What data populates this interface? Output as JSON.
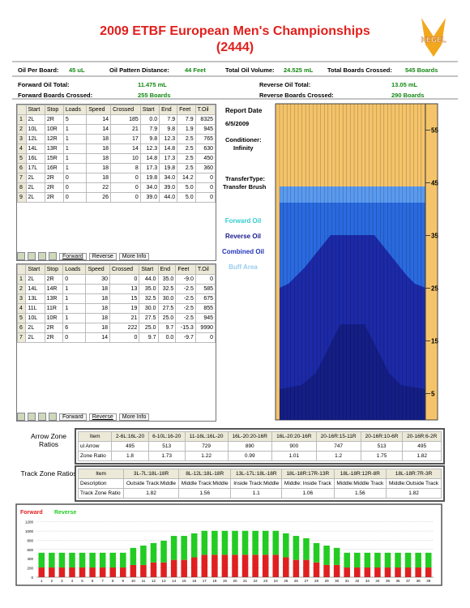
{
  "header": {
    "title": "2009 ETBF European Men's Championships",
    "subtitle": "(2444)",
    "logo": "KEGEL"
  },
  "summary": [
    [
      {
        "label": "Oil Per Board:",
        "value": "45 uL"
      },
      {
        "label": "Oil Pattern Distance:",
        "value": "44 Feet"
      },
      {
        "label": "Total Oil Volume:",
        "value": "24.525 mL"
      },
      {
        "label": "Total Boards Crossed:",
        "value": "545 Boards"
      }
    ],
    [
      {
        "label": "Forward Oil Total:",
        "value": "11.475 mL"
      },
      {
        "label": "Reverse Oil Total:",
        "value": "13.05 mL"
      }
    ],
    [
      {
        "label": "Forward Boards Crossed:",
        "value": "255 Boards"
      },
      {
        "label": "Reverse Boards Crossed:",
        "value": "290 Boards"
      }
    ]
  ],
  "forward_table": {
    "columns": [
      "Start",
      "Stop",
      "Loads",
      "Speed",
      "Crossed",
      "Start",
      "End",
      "Feet",
      "T.Oil"
    ],
    "rows": [
      [
        "1",
        "2L",
        "2R",
        "5",
        "14",
        "185",
        "0.0",
        "7.9",
        "7.9",
        "8325"
      ],
      [
        "2",
        "10L",
        "10R",
        "1",
        "14",
        "21",
        "7.9",
        "9.8",
        "1.9",
        "945"
      ],
      [
        "3",
        "12L",
        "12R",
        "1",
        "18",
        "17",
        "9.8",
        "12.3",
        "2.5",
        "765"
      ],
      [
        "4",
        "14L",
        "13R",
        "1",
        "18",
        "14",
        "12.3",
        "14.8",
        "2.5",
        "630"
      ],
      [
        "5",
        "16L",
        "15R",
        "1",
        "18",
        "10",
        "14.8",
        "17.3",
        "2.5",
        "450"
      ],
      [
        "6",
        "17L",
        "16R",
        "1",
        "18",
        "8",
        "17.3",
        "19.8",
        "2.5",
        "360"
      ],
      [
        "7",
        "2L",
        "2R",
        "0",
        "18",
        "0",
        "19.8",
        "34.0",
        "14.2",
        "0"
      ],
      [
        "8",
        "2L",
        "2R",
        "0",
        "22",
        "0",
        "34.0",
        "39.0",
        "5.0",
        "0"
      ],
      [
        "9",
        "2L",
        "2R",
        "0",
        "26",
        "0",
        "39.0",
        "44.0",
        "5.0",
        "0"
      ]
    ],
    "tabs": [
      "Forward",
      "Reverse",
      "More Info"
    ]
  },
  "reverse_table": {
    "columns": [
      "Start",
      "Stop",
      "Loads",
      "Speed",
      "Crossed",
      "Start",
      "End",
      "Feet",
      "T.Oil"
    ],
    "rows": [
      [
        "1",
        "2L",
        "2R",
        "0",
        "30",
        "0",
        "44.0",
        "35.0",
        "-9.0",
        "0"
      ],
      [
        "2",
        "14L",
        "14R",
        "1",
        "18",
        "13",
        "35.0",
        "32.5",
        "-2.5",
        "585"
      ],
      [
        "3",
        "13L",
        "13R",
        "1",
        "18",
        "15",
        "32.5",
        "30.0",
        "-2.5",
        "675"
      ],
      [
        "4",
        "11L",
        "11R",
        "1",
        "18",
        "19",
        "30.0",
        "27.5",
        "-2.5",
        "855"
      ],
      [
        "5",
        "10L",
        "10R",
        "1",
        "18",
        "21",
        "27.5",
        "25.0",
        "-2.5",
        "945"
      ],
      [
        "6",
        "2L",
        "2R",
        "6",
        "18",
        "222",
        "25.0",
        "9.7",
        "-15.3",
        "9990"
      ],
      [
        "7",
        "2L",
        "2R",
        "0",
        "14",
        "0",
        "9.7",
        "0.0",
        "-9.7",
        "0"
      ]
    ],
    "tabs": [
      "Forward",
      "Reverse",
      "More Info"
    ]
  },
  "report": {
    "date_label": "Report Date",
    "date": "6/5/2009",
    "conditioner_label": "Conditioner:",
    "conditioner": "Infinity",
    "transfer_label": "TransferType:",
    "transfer": "Transfer Brush"
  },
  "legend": [
    {
      "name": "Forward Oil",
      "color": "#33cccc"
    },
    {
      "name": "Reverse Oil",
      "color": "#1a1a8c"
    },
    {
      "name": "Combined Oil",
      "color": "#2233bb"
    },
    {
      "name": "Buff Area",
      "color": "#99ccee"
    }
  ],
  "lane_graph": {
    "ylim": [
      0,
      60
    ],
    "yticks": [
      55,
      45,
      35,
      25,
      15,
      5
    ]
  },
  "arrow_zone": {
    "label": "Arrow Zone Ratios",
    "columns": [
      "Item",
      "2-6L:16L-20",
      "6-10L:16-20",
      "11-16L:16L-20",
      "16L-20:20-16R",
      "16L-20:20-16R",
      "20-16R:15-11R",
      "20-16R:10-6R",
      "20-16R:6-2R"
    ],
    "rows": [
      [
        "ul Arrow",
        "495",
        "513",
        "729",
        "890",
        "900",
        "747",
        "513",
        "495"
      ],
      [
        "Zone Ratio",
        "1.8",
        "1.73",
        "1.22",
        "0.99",
        "1.01",
        "1.2",
        "1.75",
        "1.82"
      ]
    ]
  },
  "track_zone": {
    "label": "Track Zone Ratios",
    "columns": [
      "Item",
      "3L-7L:18L-18R",
      "8L-12L:18L-18R",
      "13L-17L:18L-18R",
      "18L-18R:17R-13R",
      "18L-18R:12R-8R",
      "18L-18R:7R-3R"
    ],
    "rows": [
      [
        "Description",
        "Outside Track:Middle",
        "Middle Track:Middle",
        "Inside Track:Middle",
        "Middle: Inside Track",
        "Middle:Middle Track",
        "Middle:Outside Track"
      ],
      [
        "Track Zone Ratio",
        "1.82",
        "1.56",
        "1.1",
        "1.06",
        "1.56",
        "1.82"
      ]
    ]
  },
  "chart_data": {
    "type": "bar",
    "stacked": true,
    "categories": [
      "1",
      "2",
      "3",
      "4",
      "5",
      "6",
      "7",
      "8",
      "9",
      "10",
      "11",
      "12",
      "13",
      "14",
      "15",
      "16",
      "17",
      "18",
      "19",
      "20",
      "21",
      "22",
      "23",
      "24",
      "25",
      "26",
      "27",
      "28",
      "29",
      "30",
      "31",
      "32",
      "33",
      "34",
      "35",
      "36",
      "37",
      "38",
      "39"
    ],
    "series": [
      {
        "name": "Forward",
        "color": "#e02020",
        "values": [
          210,
          210,
          210,
          210,
          210,
          210,
          210,
          210,
          210,
          265,
          265,
          320,
          320,
          375,
          375,
          430,
          485,
          485,
          485,
          485,
          485,
          485,
          485,
          485,
          430,
          375,
          375,
          320,
          265,
          265,
          210,
          210,
          210,
          210,
          210,
          210,
          210,
          210,
          210
        ]
      },
      {
        "name": "Reverse",
        "color": "#22cc22",
        "values": [
          320,
          320,
          320,
          320,
          320,
          320,
          320,
          320,
          320,
          370,
          420,
          420,
          470,
          520,
          520,
          520,
          520,
          520,
          520,
          520,
          520,
          520,
          520,
          520,
          520,
          520,
          470,
          420,
          420,
          370,
          320,
          320,
          320,
          320,
          320,
          320,
          320,
          320,
          320
        ]
      }
    ],
    "ylim": [
      0,
      1300
    ],
    "yticks": [
      0,
      200,
      400,
      600,
      800,
      1000,
      1200
    ],
    "grid": true
  }
}
